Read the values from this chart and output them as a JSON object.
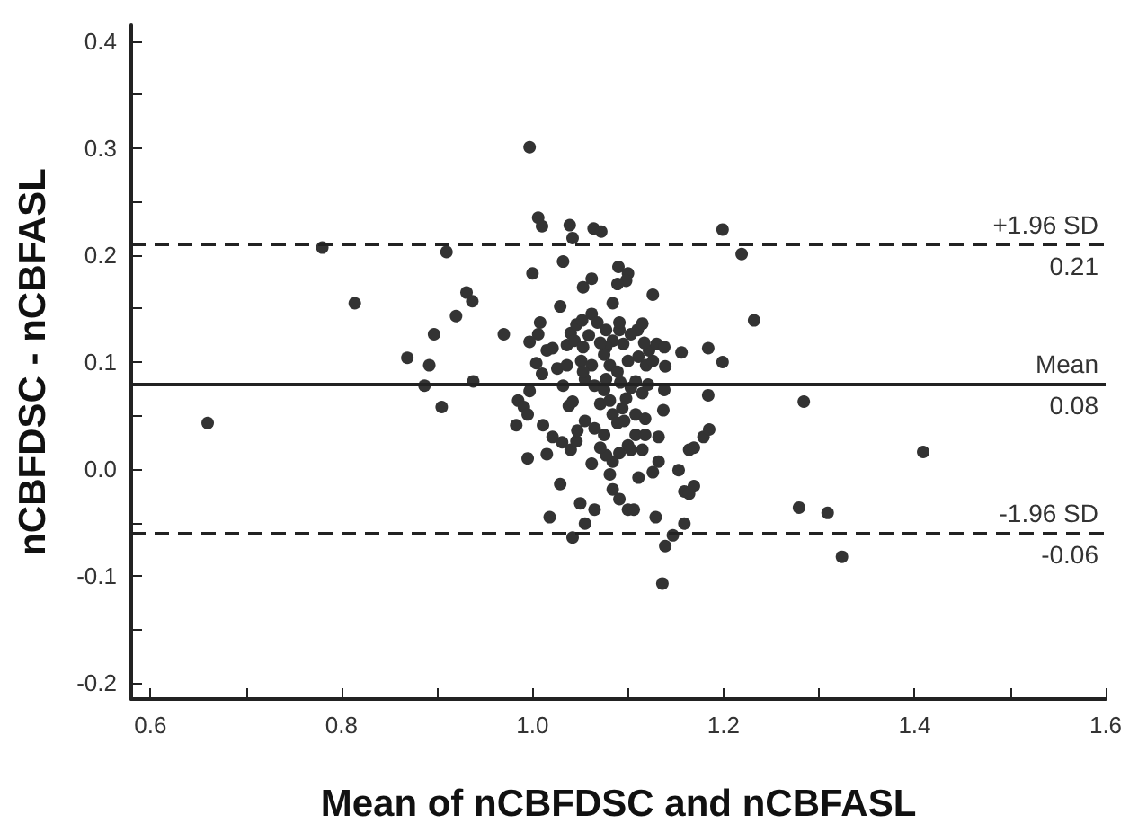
{
  "chart_data": {
    "type": "scatter",
    "xlabel": "Mean of nCBFDSC and nCBFASL",
    "ylabel": "nCBFDSC - nCBFASL",
    "xlim": [
      0.58,
      1.6
    ],
    "ylim": [
      -0.215,
      0.415
    ],
    "xticks": [
      0.6,
      {
        "value": 0.7,
        "label": null
      },
      0.8,
      {
        "value": 0.9,
        "label": null
      },
      {
        "value": 1,
        "label": "1.0"
      },
      {
        "value": 1.1,
        "label": null
      },
      1.2,
      {
        "value": 1.3,
        "label": null
      },
      1.4,
      {
        "value": 1.5,
        "label": null
      },
      1.6
    ],
    "yticks": [
      -0.2,
      {
        "value": -0.15,
        "label": null
      },
      -0.1,
      {
        "value": -0.05,
        "label": null
      },
      {
        "value": 0,
        "label": "0.0"
      },
      {
        "value": 0.05,
        "label": null
      },
      0.1,
      {
        "value": 0.15,
        "label": null
      },
      0.2,
      {
        "value": 0.25,
        "label": null
      },
      0.3,
      {
        "value": 0.35,
        "label": null
      },
      0.4
    ],
    "grid": false,
    "marker": "circle",
    "annotations": [
      {
        "text": "0.21",
        "y": 0.21
      },
      {
        "text": "0.08",
        "y": 0.08
      },
      {
        "text": "-0.06",
        "y": -0.06
      }
    ],
    "ref_lines": [
      {
        "axis": "y",
        "value": 0.21,
        "label": "+1.96 SD",
        "line_style": "dashed",
        "color": "#222222"
      },
      {
        "axis": "y",
        "value": 0.08,
        "label": "Mean",
        "line_style": "solid",
        "color": "#222222"
      },
      {
        "axis": "y",
        "value": -0.06,
        "label": "-1.96 SD",
        "line_style": "dashed",
        "color": "#222222"
      }
    ],
    "series": [
      {
        "color": "#333333",
        "x": [
          0.66,
          0.78,
          0.814,
          0.869,
          0.892,
          0.887,
          0.897,
          0.905,
          0.91,
          0.92,
          0.931,
          0.937,
          0.938,
          0.97,
          0.997,
          1.006,
          1.01,
          1.0,
          1.039,
          1.042,
          1.032,
          1.064,
          1.072,
          1.199,
          1.219,
          1.232,
          1.184,
          1.199,
          1.184,
          1.156,
          1.126,
          1.09,
          1.1,
          1.098,
          1.089,
          1.084,
          1.053,
          1.062,
          1.029,
          1.008,
          1.006,
          0.997,
          1.015,
          1.004,
          1.01,
          0.997,
          0.985,
          0.991,
          0.983,
          0.995,
          1.011,
          0.995,
          1.015,
          1.021,
          1.031,
          1.04,
          1.046,
          1.029,
          1.018,
          1.042,
          1.05,
          1.055,
          1.065,
          1.084,
          1.091,
          1.1,
          1.106,
          1.111,
          1.126,
          1.132,
          1.129,
          1.136,
          1.139,
          1.147,
          1.153,
          1.159,
          1.164,
          1.169,
          1.159,
          1.164,
          1.169,
          1.179,
          1.185,
          1.284,
          1.279,
          1.309,
          1.324,
          1.409,
          1.138,
          1.137,
          1.132,
          1.115,
          1.108,
          1.1,
          1.091,
          1.084,
          1.077,
          1.071,
          1.075,
          1.065,
          1.055,
          1.047,
          1.038,
          1.042,
          1.032,
          1.026,
          1.036,
          1.021,
          1.036,
          1.04,
          1.046,
          1.052,
          1.044,
          1.062,
          1.068,
          1.059,
          1.053,
          1.051,
          1.062,
          1.055,
          1.065,
          1.075,
          1.071,
          1.081,
          1.084,
          1.089,
          1.094,
          1.098,
          1.103,
          1.108,
          1.115,
          1.121,
          1.119,
          1.126,
          1.122,
          1.117,
          1.11,
          1.115,
          1.13,
          1.138,
          1.139,
          1.111,
          1.1,
          1.095,
          1.091,
          1.084,
          1.077,
          1.075,
          1.081,
          1.089,
          1.092,
          1.077,
          1.096,
          1.108,
          1.103,
          1.118,
          1.118,
          1.053,
          1.071,
          1.077,
          1.091,
          1.103,
          1.062,
          1.081
        ],
        "values": [
          0.043,
          0.207,
          0.155,
          0.104,
          0.097,
          0.078,
          0.126,
          0.058,
          0.203,
          0.143,
          0.165,
          0.157,
          0.082,
          0.126,
          0.301,
          0.235,
          0.227,
          0.183,
          0.228,
          0.216,
          0.194,
          0.225,
          0.222,
          0.224,
          0.201,
          0.139,
          0.113,
          0.1,
          0.069,
          0.109,
          0.163,
          0.189,
          0.183,
          0.176,
          0.173,
          0.155,
          0.17,
          0.178,
          0.152,
          0.137,
          0.126,
          0.119,
          0.111,
          0.099,
          0.089,
          0.073,
          0.064,
          0.058,
          0.041,
          0.051,
          0.041,
          0.01,
          0.014,
          0.03,
          0.025,
          0.018,
          0.026,
          -0.014,
          -0.045,
          -0.064,
          -0.032,
          -0.051,
          -0.038,
          -0.019,
          -0.028,
          -0.038,
          -0.038,
          -0.008,
          -0.003,
          0.007,
          -0.045,
          -0.107,
          -0.072,
          -0.062,
          -0.001,
          -0.021,
          -0.023,
          -0.016,
          -0.051,
          0.018,
          0.02,
          0.03,
          0.037,
          0.063,
          -0.036,
          -0.041,
          -0.082,
          0.016,
          0.074,
          0.055,
          0.03,
          0.018,
          0.032,
          0.022,
          0.015,
          0.007,
          0.013,
          0.02,
          0.032,
          0.038,
          0.045,
          0.036,
          0.059,
          0.063,
          0.078,
          0.094,
          0.097,
          0.113,
          0.116,
          0.127,
          0.135,
          0.139,
          0.12,
          0.145,
          0.137,
          0.125,
          0.114,
          0.101,
          0.097,
          0.084,
          0.078,
          0.074,
          0.061,
          0.064,
          0.051,
          0.043,
          0.057,
          0.066,
          0.076,
          0.082,
          0.071,
          0.079,
          0.097,
          0.101,
          0.111,
          0.118,
          0.13,
          0.136,
          0.117,
          0.114,
          0.096,
          0.105,
          0.101,
          0.117,
          0.13,
          0.12,
          0.114,
          0.107,
          0.097,
          0.091,
          0.081,
          0.084,
          0.045,
          0.051,
          0.018,
          0.032,
          0.047,
          0.091,
          0.118,
          0.13,
          0.137,
          0.126,
          0.005,
          -0.005
        ]
      }
    ]
  }
}
